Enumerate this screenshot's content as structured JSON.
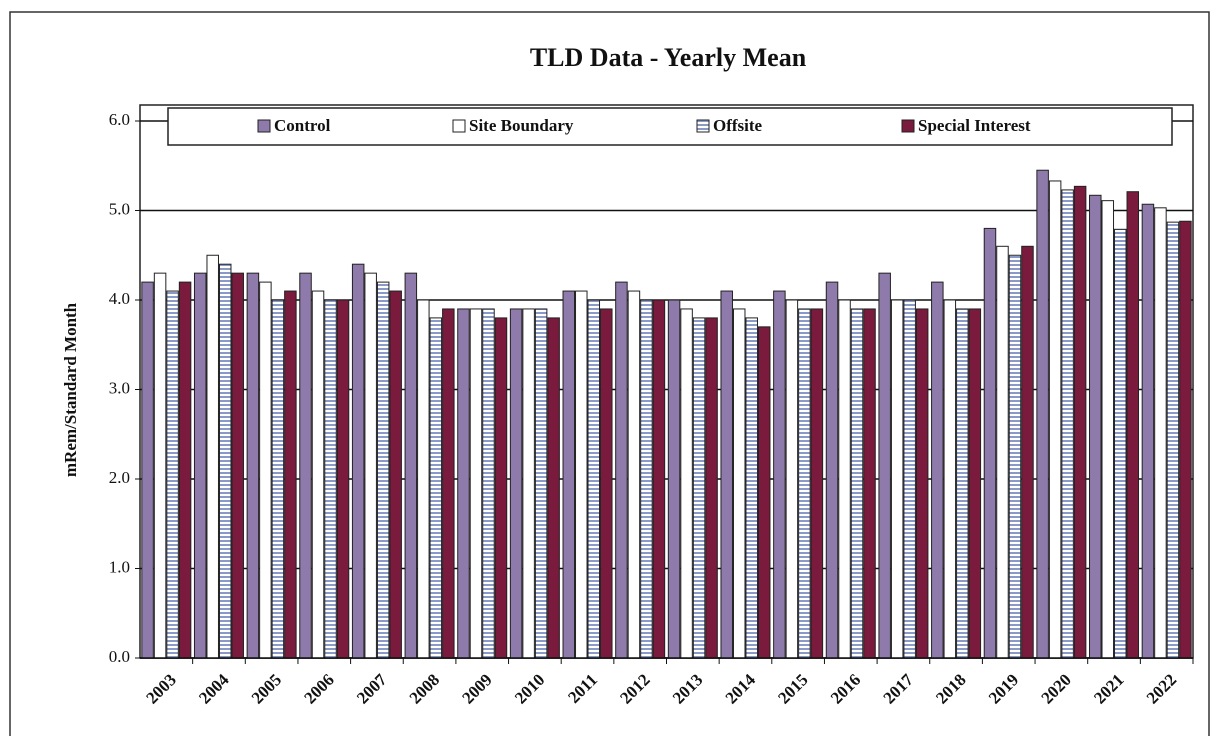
{
  "chart_data": {
    "type": "bar",
    "title": "TLD Data - Yearly Mean",
    "y_label": "mRem/Standard Month",
    "categories": [
      "2003",
      "2004",
      "2005",
      "2006",
      "2007",
      "2008",
      "2009",
      "2010",
      "2011",
      "2012",
      "2013",
      "2014",
      "2015",
      "2016",
      "2017",
      "2018",
      "2019",
      "2020",
      "2021",
      "2022"
    ],
    "series": [
      {
        "name": "Control",
        "color": "#8e7bab",
        "values": [
          4.2,
          4.3,
          4.3,
          4.3,
          4.4,
          4.3,
          3.9,
          3.9,
          4.1,
          4.2,
          4.0,
          4.1,
          4.1,
          4.2,
          4.3,
          4.2,
          4.8,
          5.45,
          5.17,
          5.07
        ]
      },
      {
        "name": "Site Boundary",
        "color": "#ffffff",
        "values": [
          4.3,
          4.5,
          4.2,
          4.1,
          4.3,
          4.0,
          3.9,
          3.9,
          4.1,
          4.1,
          3.9,
          3.9,
          4.0,
          4.0,
          4.0,
          4.0,
          4.6,
          5.33,
          5.11,
          5.03
        ]
      },
      {
        "name": "Offsite",
        "color": "#c9d2ea",
        "values": [
          4.1,
          4.4,
          4.0,
          4.0,
          4.2,
          3.8,
          3.9,
          3.9,
          4.0,
          4.0,
          3.8,
          3.8,
          3.9,
          3.9,
          4.0,
          3.9,
          4.5,
          5.23,
          4.79,
          4.87
        ]
      },
      {
        "name": "Special Interest",
        "color": "#7a1a3d",
        "values": [
          4.2,
          4.3,
          4.1,
          4.0,
          4.1,
          3.9,
          3.8,
          3.8,
          3.9,
          4.0,
          3.8,
          3.7,
          3.9,
          3.9,
          3.9,
          3.9,
          4.6,
          5.27,
          5.21,
          4.88
        ]
      }
    ],
    "ylim": [
      0,
      6
    ],
    "yticks": [
      {
        "value": 0,
        "label": "0.0"
      },
      {
        "value": 1,
        "label": "1.0"
      },
      {
        "value": 2,
        "label": "2.0"
      },
      {
        "value": 3,
        "label": "3.0"
      },
      {
        "value": 4,
        "label": "4.0"
      },
      {
        "value": 5,
        "label": "5.0"
      },
      {
        "value": 6,
        "label": "6.0"
      }
    ],
    "grid": true,
    "legend": "top"
  }
}
